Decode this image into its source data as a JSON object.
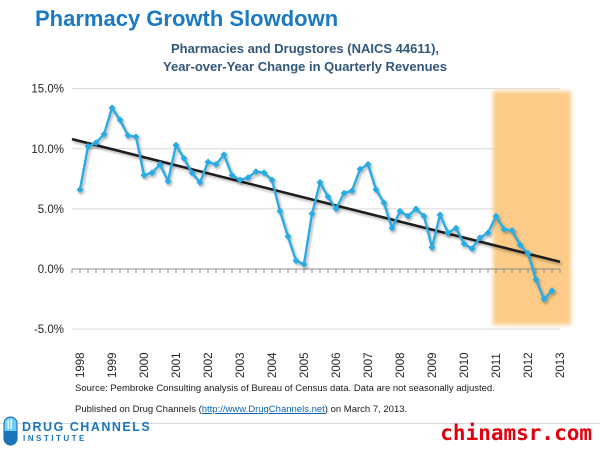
{
  "page": {
    "title": "Pharmacy Growth Slowdown"
  },
  "subtitle": {
    "line1": "Pharmacies and Drugstores (NAICS 44611),",
    "line2": "Year-over-Year Change in Quarterly Revenues"
  },
  "footer": {
    "source_note": "Source: Pembroke Consulting analysis of Bureau of Census data. Data are not seasonally adjusted.",
    "published_prefix": "Published on Drug Channels (",
    "published_link": "http://www.DrugChannels.net",
    "published_suffix": ") on March 7, 2013."
  },
  "branding": {
    "logo_line1": "DRUG CHANNELS",
    "logo_line2": "INSTITUTE",
    "logo_icon": "pill-capsule-icon",
    "watermark": "chinamsr.com"
  },
  "colors": {
    "title_blue": "#1B7AC2",
    "subtitle_blue": "#31577A",
    "line_blue": "#29ABE2",
    "trend_black": "#1A1A1A",
    "highlight_orange": "#FBC981",
    "gridline_gray": "#D9D9D9",
    "axis_gray": "#8C8C8C",
    "logo_blue": "#1C75BC",
    "link_blue": "#0B62B0",
    "watermark_red": "#E2000F"
  },
  "chart_data": {
    "type": "line",
    "title": "Pharmacies and Drugstores (NAICS 44611), Year-over-Year Change in Quarterly Revenues",
    "x_start": "1998 Q1",
    "x_frequency": "quarterly",
    "series": [
      {
        "name": "Year-over-year % change in quarterly revenues",
        "values_pct": [
          6.6,
          10.2,
          10.5,
          11.2,
          13.4,
          12.4,
          11.1,
          11.0,
          7.8,
          8.0,
          8.7,
          7.3,
          10.3,
          9.2,
          8.0,
          7.2,
          8.9,
          8.7,
          9.5,
          7.8,
          7.4,
          7.6,
          8.1,
          8.0,
          7.4,
          4.8,
          2.7,
          0.7,
          0.4,
          4.6,
          7.2,
          6.0,
          5.0,
          6.3,
          6.5,
          8.3,
          8.7,
          6.6,
          5.5,
          3.4,
          4.8,
          4.4,
          5.0,
          4.4,
          1.8,
          4.5,
          3.0,
          3.4,
          2.1,
          1.7,
          2.6,
          3.0,
          4.4,
          3.3,
          3.2,
          2.0,
          1.3,
          -0.9,
          -2.5,
          -1.8
        ]
      }
    ],
    "trend_line": {
      "type": "linear",
      "start_pct": 10.8,
      "end_pct": 0.6
    },
    "x_tick_labels": [
      "1998",
      "1999",
      "2000",
      "2001",
      "2002",
      "2003",
      "2004",
      "2005",
      "2006",
      "2007",
      "2008",
      "2009",
      "2010",
      "2011",
      "2012",
      "2013"
    ],
    "y_tick_labels": [
      "15.0%",
      "10.0%",
      "5.0%",
      "0.0%",
      "-5.0%"
    ],
    "y_tick_values": [
      15,
      10,
      5,
      0,
      -5
    ],
    "ylim_pct": [
      -5,
      15
    ],
    "grid": "horizontal-only",
    "legend": "none",
    "highlight_region": {
      "from": "2011 Q1",
      "to": "right edge of plot",
      "color": "#FBC981"
    }
  }
}
